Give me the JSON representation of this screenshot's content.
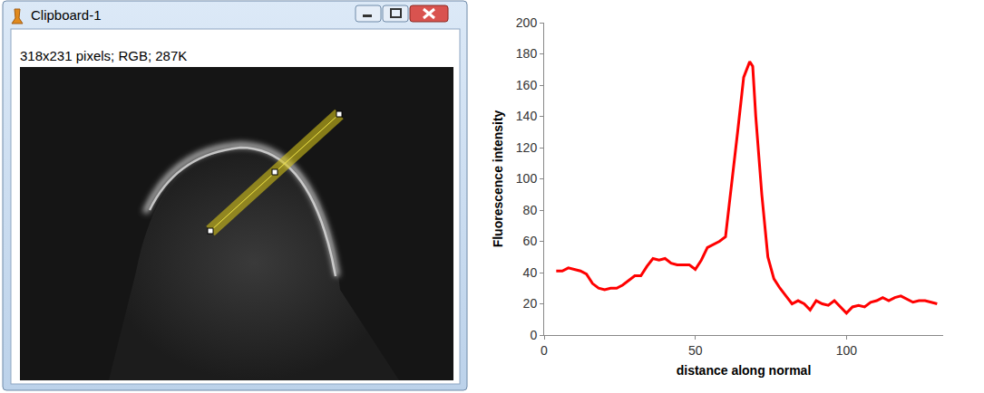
{
  "window": {
    "title": "Clipboard-1",
    "info": "318x231 pixels; RGB; 287K"
  },
  "chart_data": {
    "type": "line",
    "x_label": "distance along normal",
    "y_label": "Fluorescence intensity",
    "x": [
      4,
      6,
      8,
      10,
      12,
      14,
      16,
      18,
      20,
      22,
      24,
      26,
      28,
      30,
      32,
      34,
      36,
      38,
      40,
      42,
      44,
      46,
      48,
      50,
      52,
      54,
      56,
      58,
      60,
      62,
      64,
      66,
      68,
      69,
      70,
      72,
      74,
      76,
      78,
      80,
      82,
      84,
      86,
      88,
      90,
      92,
      94,
      96,
      98,
      100,
      102,
      104,
      106,
      108,
      110,
      112,
      114,
      116,
      118,
      120,
      122,
      124,
      126,
      128,
      130
    ],
    "values": [
      41,
      41,
      43,
      42,
      41,
      39,
      33,
      30,
      29,
      30,
      30,
      32,
      35,
      38,
      38,
      44,
      49,
      48,
      49,
      46,
      45,
      45,
      45,
      42,
      48,
      56,
      58,
      60,
      63,
      95,
      130,
      165,
      175,
      172,
      140,
      90,
      50,
      36,
      30,
      25,
      20,
      22,
      20,
      16,
      22,
      20,
      19,
      22,
      18,
      14,
      18,
      19,
      18,
      21,
      22,
      24,
      22,
      24,
      25,
      23,
      21,
      22,
      22,
      21,
      20
    ],
    "color": "#ff0000",
    "xlim": [
      0,
      132
    ],
    "xticks": [
      0,
      50,
      100
    ],
    "ylim": [
      0,
      200
    ],
    "yticks": [
      0,
      20,
      40,
      60,
      80,
      100,
      120,
      140,
      160,
      180,
      200
    ],
    "grid": false
  }
}
